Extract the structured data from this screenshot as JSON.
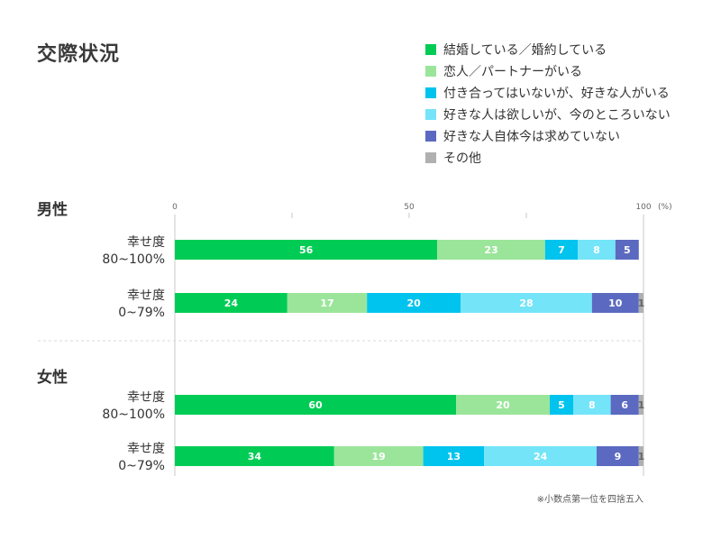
{
  "title": "交際状況",
  "note": "※小数点第一位を四捨五入",
  "chart_data": {
    "type": "bar",
    "orientation": "horizontal",
    "stacked": true,
    "xlim": [
      0,
      100
    ],
    "x_ticks": [
      "0",
      "50",
      "100"
    ],
    "x_unit": "(%)",
    "legend_position": "top-right",
    "categories_legend": [
      {
        "name": "結婚している／婚約している",
        "color": "#00cc55"
      },
      {
        "name": "恋人／パートナーがいる",
        "color": "#9be59b"
      },
      {
        "name": "付き合ってはいないが、好きな人がいる",
        "color": "#00c3ee"
      },
      {
        "name": "好きな人は欲しいが、今のところいない",
        "color": "#74e4f8"
      },
      {
        "name": "好きな人自体今は求めていない",
        "color": "#5b6ac0"
      },
      {
        "name": "その他",
        "color": "#b0b0b0"
      }
    ],
    "groups": [
      {
        "label": "男性",
        "rows": [
          {
            "label1": "幸せ度",
            "label2": "80~100%",
            "values": [
              56,
              23,
              7,
              8,
              5,
              0
            ]
          },
          {
            "label1": "幸せ度",
            "label2": "0~79%",
            "values": [
              24,
              17,
              20,
              28,
              10,
              1
            ]
          }
        ]
      },
      {
        "label": "女性",
        "rows": [
          {
            "label1": "幸せ度",
            "label2": "80~100%",
            "values": [
              60,
              20,
              5,
              8,
              6,
              1
            ]
          },
          {
            "label1": "幸せ度",
            "label2": "0~79%",
            "values": [
              34,
              19,
              13,
              24,
              9,
              1
            ]
          }
        ]
      }
    ]
  }
}
